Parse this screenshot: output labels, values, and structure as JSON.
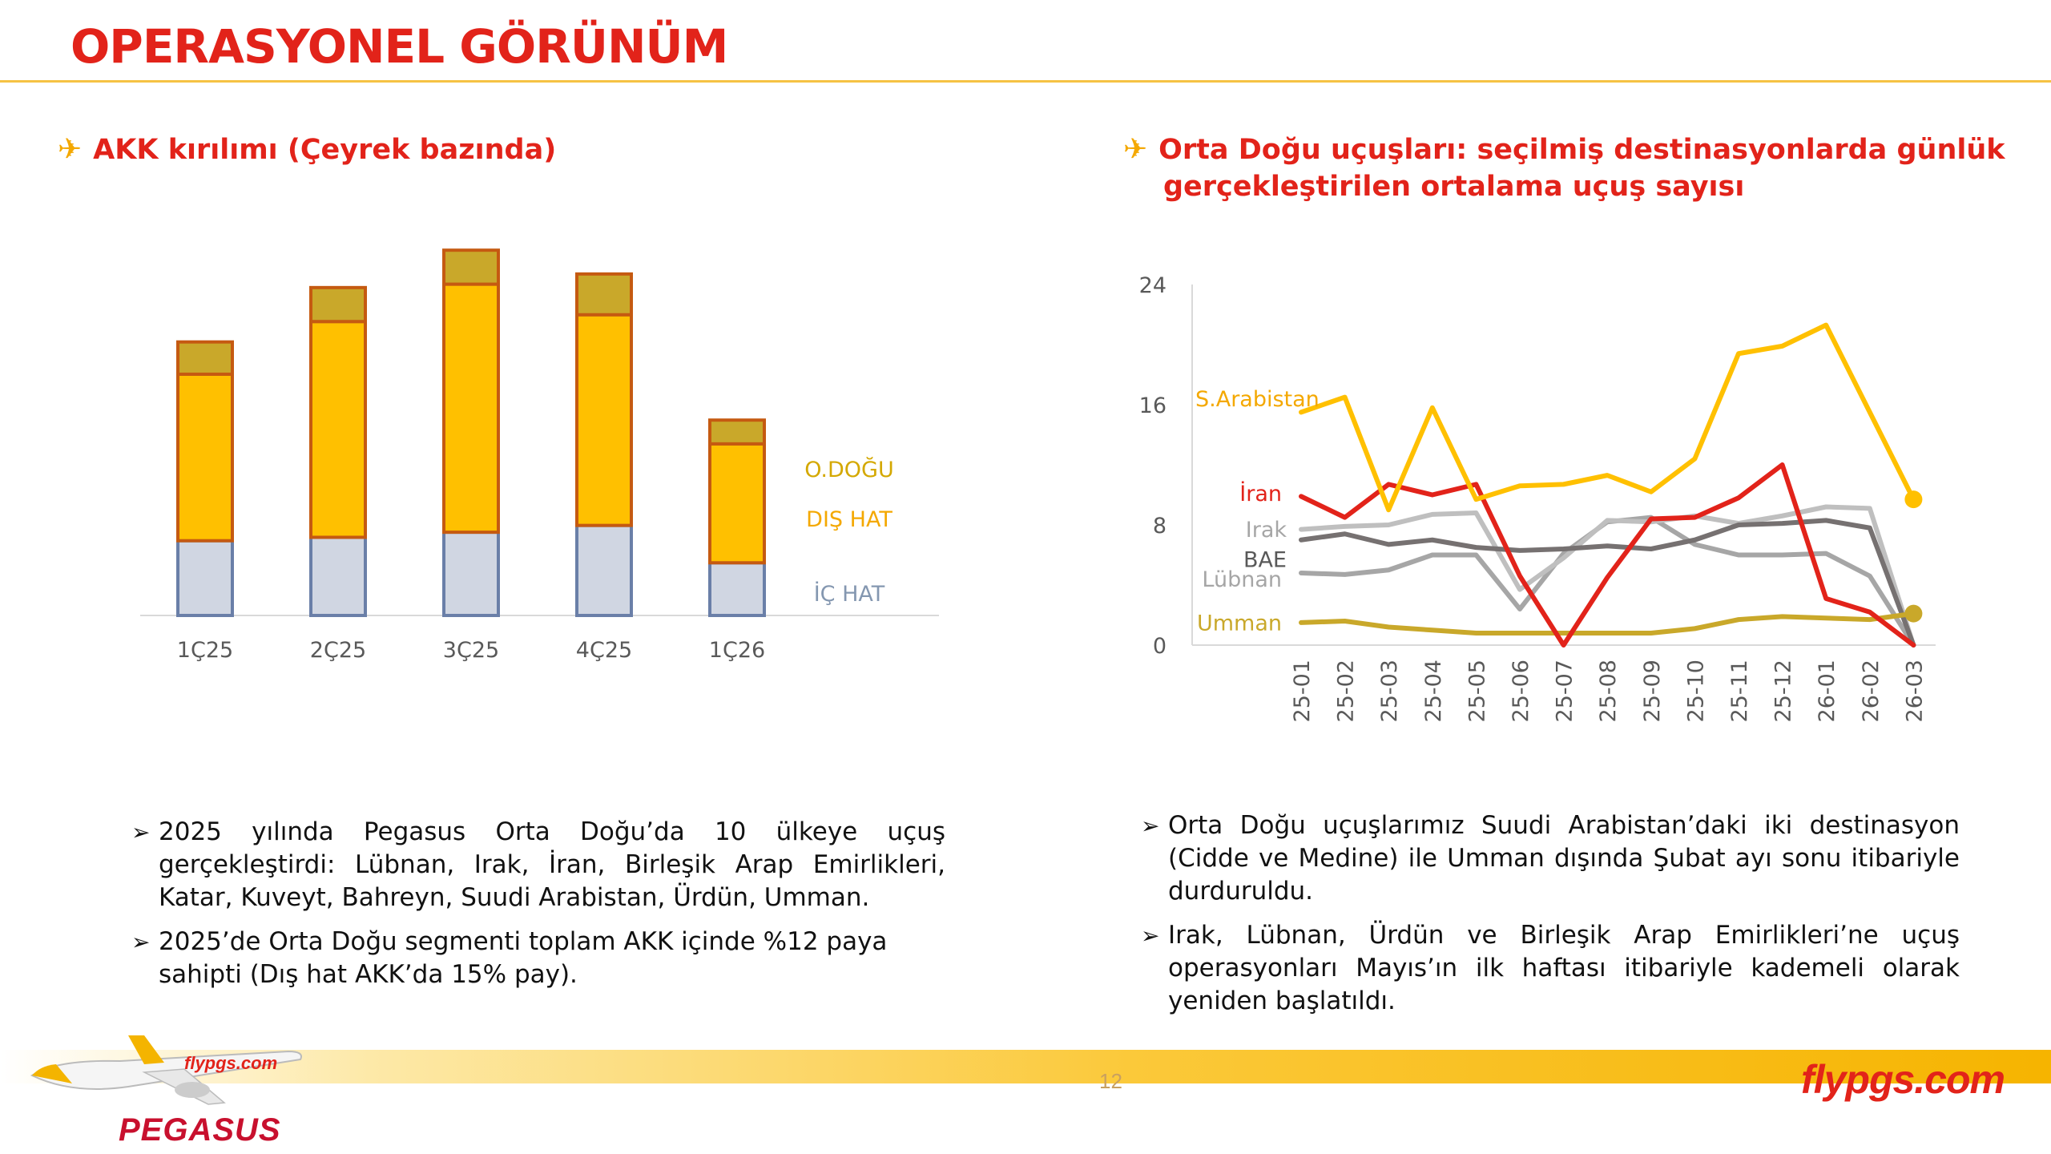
{
  "page": {
    "title": "OPERASYONEL GÖRÜNÜM",
    "page_number": "12",
    "brand_site": "flypgs.com",
    "brand_name": "PEGASUS",
    "plane_livery_text": "flypgs.com"
  },
  "left_section": {
    "icon": "airplane-icon",
    "title": "AKK kırılımı (Çeyrek bazında)"
  },
  "right_section": {
    "icon": "airplane-icon",
    "title_line1": "Orta Doğu uçuşları: seçilmiş destinasyonlarda günlük",
    "title_line2": "gerçekleştirilen ortalama uçuş sayısı"
  },
  "chart_data": [
    {
      "type": "bar",
      "stacked": true,
      "categories": [
        "1Ç25",
        "2Ç25",
        "3Ç25",
        "4Ç25",
        "1Ç26"
      ],
      "series": [
        {
          "name": "İÇ HAT",
          "values": [
            4.4,
            4.6,
            4.9,
            5.3,
            3.1
          ],
          "color": "#d0d6e2",
          "border": "#6a7fa8"
        },
        {
          "name": "DIŞ HAT",
          "values": [
            9.8,
            12.7,
            14.6,
            12.4,
            7.0
          ],
          "color": "#ffc000",
          "border": "#c55a11"
        },
        {
          "name": "O.DOĞU",
          "values": [
            1.9,
            2.0,
            2.0,
            2.4,
            1.4
          ],
          "color": "#c9a82a",
          "border": "#c55a11"
        }
      ],
      "legend_placement": "right",
      "grid": false
    },
    {
      "type": "line",
      "x": [
        "25-01",
        "25-02",
        "25-03",
        "25-04",
        "25-05",
        "25-06",
        "25-07",
        "25-08",
        "25-09",
        "25-10",
        "25-11",
        "25-12",
        "26-01",
        "26-02",
        "26-03"
      ],
      "yticks": [
        0,
        8,
        16,
        24
      ],
      "ylim": [
        0,
        24
      ],
      "grid": false,
      "series": [
        {
          "name": "S.Arabistan",
          "color": "#ffc000",
          "values": [
            15.5,
            16.5,
            9.0,
            15.8,
            9.7,
            10.6,
            10.7,
            11.3,
            10.2,
            12.4,
            19.4,
            19.9,
            21.3,
            15.5,
            9.7
          ]
        },
        {
          "name": "İran",
          "color": "#e2231a",
          "values": [
            9.9,
            8.5,
            10.7,
            10.0,
            10.7,
            4.6,
            0.0,
            4.5,
            8.4,
            8.5,
            9.8,
            12.0,
            3.1,
            2.2,
            0.0
          ]
        },
        {
          "name": "Irak",
          "color": "#bfbfbf",
          "values": [
            7.7,
            7.9,
            8.0,
            8.7,
            8.8,
            3.7,
            5.8,
            8.3,
            8.2,
            8.6,
            8.1,
            8.6,
            9.2,
            9.1,
            0.0
          ]
        },
        {
          "name": "BAE",
          "color": "#767171",
          "values": [
            7.0,
            7.4,
            6.7,
            7.0,
            6.5,
            6.3,
            6.4,
            6.6,
            6.4,
            7.0,
            8.0,
            8.1,
            8.3,
            7.8,
            0.0
          ]
        },
        {
          "name": "Lübnan",
          "color": "#a6a6a6",
          "values": [
            4.8,
            4.7,
            5.0,
            6.0,
            6.0,
            2.4,
            6.1,
            8.2,
            8.5,
            6.7,
            6.0,
            6.0,
            6.1,
            4.6,
            0.0
          ]
        },
        {
          "name": "Umman",
          "color": "#c9a82a",
          "values": [
            1.5,
            1.6,
            1.2,
            1.0,
            0.8,
            0.8,
            0.8,
            0.8,
            0.8,
            1.1,
            1.7,
            1.9,
            1.8,
            1.7,
            2.1
          ]
        }
      ],
      "end_markers": [
        {
          "series": "S.Arabistan",
          "value": 9.7
        },
        {
          "series": "Umman",
          "value": 2.1
        }
      ]
    }
  ],
  "bullets_left": [
    "2025 yılında Pegasus Orta Doğu’da 10 ülkeye uçuş gerçekleştirdi: Lübnan, Irak, İran, Birleşik Arap Emirlikleri, Katar, Kuveyt, Bahreyn, Suudi Arabistan, Ürdün, Umman.",
    "2025’de Orta Doğu segmenti toplam AKK içinde %12 paya sahipti (Dış hat AKK’da 15% pay)."
  ],
  "bullets_right": [
    "Orta Doğu uçuşlarımız Suudi Arabistan’daki iki destinasyon (Cidde ve Medine) ile Umman dışında Şubat ayı sonu itibariyle durduruldu.",
    "Irak, Lübnan, Ürdün ve Birleşik Arap Emirlikleri’ne uçuş operasyonları Mayıs’ın ilk haftası itibariyle kademeli olarak yeniden başlatıldı."
  ]
}
